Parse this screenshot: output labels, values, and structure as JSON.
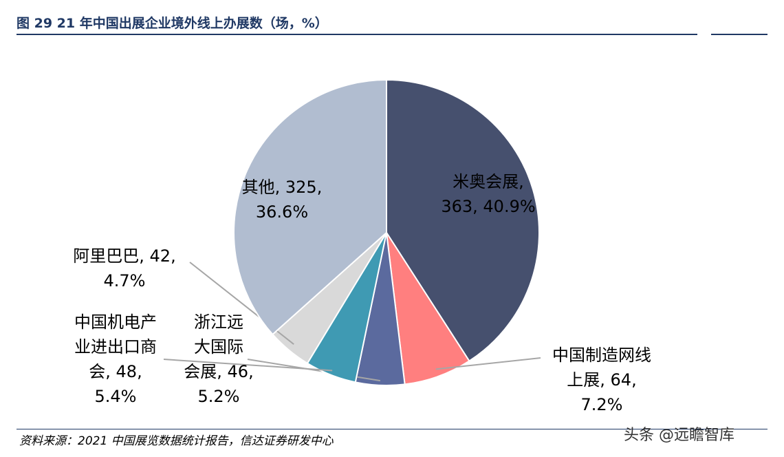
{
  "header": {
    "title": "图 29  21 年中国出展企业境外线上办展数（场，%）"
  },
  "chart_data": {
    "type": "pie",
    "title": "图 29  21 年中国出展企业境外线上办展数（场，%）",
    "slices": [
      {
        "name": "米奥会展",
        "value": 363,
        "percent": "40.9%",
        "color": "#46506e",
        "label_lines": [
          "米奥会展,",
          "363, 40.9%"
        ]
      },
      {
        "name": "中国制造网线上展",
        "value": 64,
        "percent": "7.2%",
        "color": "#ff7f7f",
        "label_lines": [
          "中国制造网线",
          "上展, 64,",
          "7.2%"
        ]
      },
      {
        "name": "浙江远大国际会展",
        "value": 46,
        "percent": "5.2%",
        "color": "#5b6a9e",
        "label_lines": [
          "浙江远",
          "大国际",
          "会展, 46,",
          "5.2%"
        ]
      },
      {
        "name": "中国机电产业进出口商会",
        "value": 48,
        "percent": "5.4%",
        "color": "#3f9ab3",
        "label_lines": [
          "中国机电产",
          "业进出口商",
          "会, 48,",
          "5.4%"
        ]
      },
      {
        "name": "阿里巴巴",
        "value": 42,
        "percent": "4.7%",
        "color": "#d9d9d9",
        "label_lines": [
          "阿里巴巴, 42,",
          "4.7%"
        ]
      },
      {
        "name": "其他",
        "value": 325,
        "percent": "36.6%",
        "color": "#b1bdd0",
        "label_lines": [
          "其他, 325,",
          "36.6%"
        ]
      }
    ]
  },
  "footer": {
    "source": "资料来源：2021 中国展览数据统计报告，信达证券研发中心",
    "watermark": "头条 @远瞻智库"
  }
}
